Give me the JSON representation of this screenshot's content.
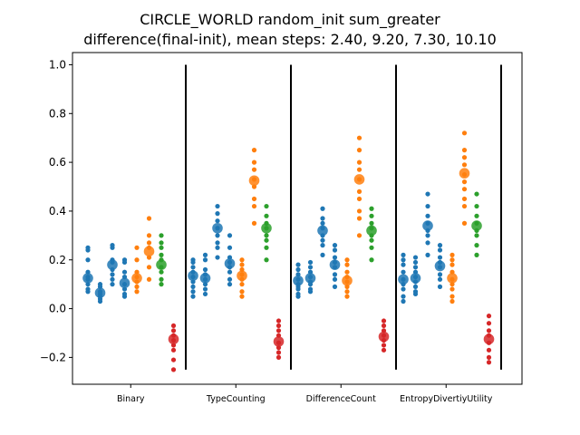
{
  "chart_data": {
    "type": "scatter",
    "title": "CIRCLE_WORLD random_init sum_greater",
    "subtitle": "difference(final-init), mean steps: 2.40, 9.20, 7.30, 10.10",
    "xlabel": "",
    "ylabel": "",
    "ylim": [
      -0.31,
      1.05
    ],
    "yticks": [
      -0.2,
      0.0,
      0.2,
      0.4,
      0.6,
      0.8,
      1.0
    ],
    "ytick_labels": [
      "−0.2",
      "0.0",
      "0.2",
      "0.4",
      "0.6",
      "0.8",
      "1.0"
    ],
    "grid": false,
    "legend": "none",
    "colors": {
      "blue": "#1f77b4",
      "orange": "#ff7f0e",
      "green": "#2ca02c",
      "red": "#d62728"
    },
    "groups": [
      {
        "label": "Binary",
        "series": [
          {
            "color": "blue",
            "mean": 0.125,
            "values": [
              0.25,
              0.24,
              0.2,
              0.15,
              0.13,
              0.12,
              0.1,
              0.08,
              0.07
            ]
          },
          {
            "color": "blue",
            "mean": 0.065,
            "values": [
              0.1,
              0.09,
              0.07,
              0.06,
              0.05,
              0.04,
              0.03
            ]
          },
          {
            "color": "blue",
            "mean": 0.18,
            "values": [
              0.26,
              0.25,
              0.2,
              0.19,
              0.16,
              0.14,
              0.12,
              0.1
            ]
          },
          {
            "color": "blue",
            "mean": 0.105,
            "values": [
              0.2,
              0.19,
              0.15,
              0.13,
              0.1,
              0.08,
              0.06,
              0.05
            ]
          },
          {
            "color": "orange",
            "mean": 0.125,
            "values": [
              0.25,
              0.2,
              0.15,
              0.13,
              0.11,
              0.09,
              0.07
            ]
          },
          {
            "color": "orange",
            "mean": 0.235,
            "values": [
              0.37,
              0.3,
              0.27,
              0.25,
              0.21,
              0.17,
              0.12
            ]
          },
          {
            "color": "green",
            "mean": 0.18,
            "values": [
              0.3,
              0.27,
              0.25,
              0.22,
              0.2,
              0.17,
              0.15,
              0.12,
              0.1
            ]
          },
          {
            "color": "red",
            "mean": -0.125,
            "values": [
              -0.07,
              -0.09,
              -0.11,
              -0.13,
              -0.15,
              -0.17,
              -0.21,
              -0.25
            ]
          }
        ]
      },
      {
        "label": "TypeCounting",
        "series": [
          {
            "color": "blue",
            "mean": 0.135,
            "values": [
              0.2,
              0.19,
              0.17,
              0.15,
              0.13,
              0.11,
              0.09,
              0.07,
              0.05
            ]
          },
          {
            "color": "blue",
            "mean": 0.125,
            "values": [
              0.22,
              0.2,
              0.16,
              0.14,
              0.12,
              0.1,
              0.08,
              0.06
            ]
          },
          {
            "color": "blue",
            "mean": 0.33,
            "values": [
              0.42,
              0.39,
              0.36,
              0.33,
              0.3,
              0.27,
              0.25,
              0.21
            ]
          },
          {
            "color": "blue",
            "mean": 0.185,
            "values": [
              0.3,
              0.25,
              0.21,
              0.19,
              0.17,
              0.15,
              0.12,
              0.1
            ]
          },
          {
            "color": "orange",
            "mean": 0.135,
            "values": [
              0.2,
              0.18,
              0.16,
              0.14,
              0.12,
              0.1,
              0.07,
              0.05
            ]
          },
          {
            "color": "orange",
            "mean": 0.525,
            "values": [
              0.65,
              0.6,
              0.57,
              0.53,
              0.5,
              0.45,
              0.42,
              0.35
            ]
          },
          {
            "color": "green",
            "mean": 0.33,
            "values": [
              0.42,
              0.38,
              0.35,
              0.33,
              0.3,
              0.28,
              0.25,
              0.2
            ]
          },
          {
            "color": "red",
            "mean": -0.135,
            "values": [
              -0.05,
              -0.07,
              -0.09,
              -0.11,
              -0.14,
              -0.16,
              -0.18,
              -0.2
            ]
          }
        ]
      },
      {
        "label": "DifferenceCount",
        "series": [
          {
            "color": "blue",
            "mean": 0.115,
            "values": [
              0.18,
              0.16,
              0.14,
              0.12,
              0.1,
              0.09,
              0.08,
              0.06,
              0.05
            ]
          },
          {
            "color": "blue",
            "mean": 0.125,
            "values": [
              0.19,
              0.17,
              0.15,
              0.13,
              0.11,
              0.1,
              0.08,
              0.07
            ]
          },
          {
            "color": "blue",
            "mean": 0.32,
            "values": [
              0.41,
              0.37,
              0.35,
              0.33,
              0.3,
              0.28,
              0.26,
              0.22
            ]
          },
          {
            "color": "blue",
            "mean": 0.18,
            "values": [
              0.26,
              0.24,
              0.21,
              0.19,
              0.17,
              0.14,
              0.12,
              0.09
            ]
          },
          {
            "color": "orange",
            "mean": 0.115,
            "values": [
              0.2,
              0.18,
              0.15,
              0.13,
              0.11,
              0.09,
              0.07,
              0.05
            ]
          },
          {
            "color": "orange",
            "mean": 0.53,
            "values": [
              0.7,
              0.65,
              0.6,
              0.57,
              0.53,
              0.48,
              0.45,
              0.4,
              0.37,
              0.3
            ]
          },
          {
            "color": "green",
            "mean": 0.32,
            "values": [
              0.41,
              0.38,
              0.35,
              0.33,
              0.3,
              0.28,
              0.25,
              0.2
            ]
          },
          {
            "color": "red",
            "mean": -0.115,
            "values": [
              -0.05,
              -0.07,
              -0.09,
              -0.11,
              -0.13,
              -0.15,
              -0.17
            ]
          }
        ]
      },
      {
        "label": "EntropyDivertiyUtility",
        "series": [
          {
            "color": "blue",
            "mean": 0.12,
            "values": [
              0.22,
              0.2,
              0.18,
              0.15,
              0.12,
              0.1,
              0.08,
              0.05,
              0.03
            ]
          },
          {
            "color": "blue",
            "mean": 0.125,
            "values": [
              0.21,
              0.19,
              0.17,
              0.15,
              0.13,
              0.11,
              0.09,
              0.07,
              0.06
            ]
          },
          {
            "color": "blue",
            "mean": 0.34,
            "values": [
              0.47,
              0.42,
              0.38,
              0.35,
              0.32,
              0.3,
              0.27,
              0.22
            ]
          },
          {
            "color": "blue",
            "mean": 0.175,
            "values": [
              0.26,
              0.24,
              0.21,
              0.19,
              0.17,
              0.14,
              0.12,
              0.09
            ]
          },
          {
            "color": "orange",
            "mean": 0.125,
            "values": [
              0.22,
              0.2,
              0.18,
              0.15,
              0.12,
              0.1,
              0.08,
              0.05,
              0.03
            ]
          },
          {
            "color": "orange",
            "mean": 0.555,
            "values": [
              0.72,
              0.65,
              0.62,
              0.59,
              0.55,
              0.52,
              0.49,
              0.45,
              0.42,
              0.35
            ]
          },
          {
            "color": "green",
            "mean": 0.34,
            "values": [
              0.47,
              0.42,
              0.38,
              0.35,
              0.32,
              0.3,
              0.26,
              0.22
            ]
          },
          {
            "color": "red",
            "mean": -0.125,
            "values": [
              -0.03,
              -0.06,
              -0.09,
              -0.11,
              -0.14,
              -0.17,
              -0.2,
              -0.22
            ]
          }
        ]
      }
    ]
  }
}
